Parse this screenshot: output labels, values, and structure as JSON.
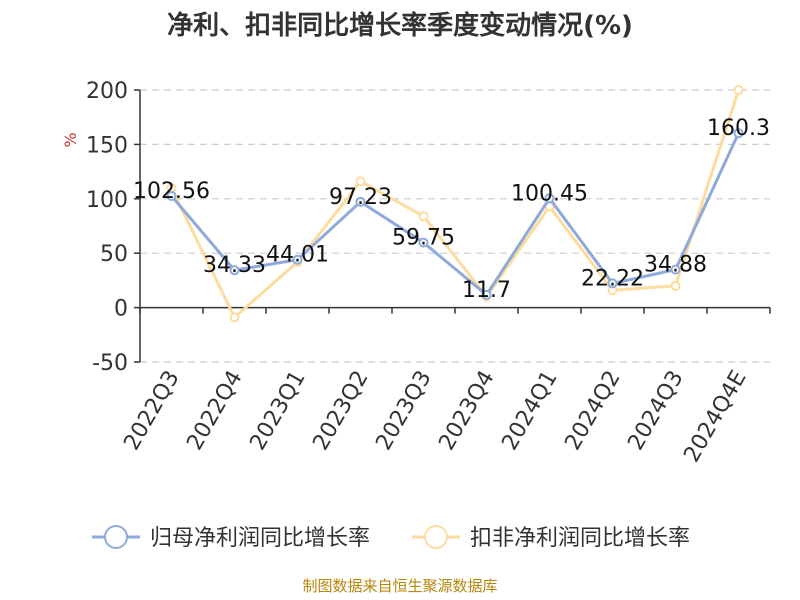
{
  "chart_data": {
    "type": "line",
    "title": "净利、扣非同比增长率季度变动情况(%)",
    "unit_label": "%",
    "ylim": [
      -50,
      200
    ],
    "yticks": [
      -50,
      0,
      50,
      100,
      150,
      200
    ],
    "grid": true,
    "legend_position": "bottom",
    "categories": [
      "2022Q3",
      "2022Q4",
      "2023Q1",
      "2023Q2",
      "2023Q3",
      "2023Q4",
      "2024Q1",
      "2024Q2",
      "2024Q3",
      "2024Q4E"
    ],
    "series": [
      {
        "name": "归母净利润同比增长率",
        "color": "#8eaadb",
        "values": [
          102.56,
          34.33,
          44.01,
          97.23,
          59.75,
          11.7,
          100.45,
          22.22,
          34.88,
          160.3
        ],
        "labels": [
          "102.56",
          "34.33",
          "44.01",
          "97.23",
          "59.75",
          "11.7",
          "100.45",
          "22.22",
          "34.88",
          "160.3"
        ]
      },
      {
        "name": "扣非净利润同比增长率",
        "color": "#fddc9e",
        "values": [
          110,
          -9,
          42,
          116,
          84,
          10,
          93,
          16,
          20,
          200
        ]
      }
    ],
    "source": "制图数据来自恒生聚源数据库"
  }
}
